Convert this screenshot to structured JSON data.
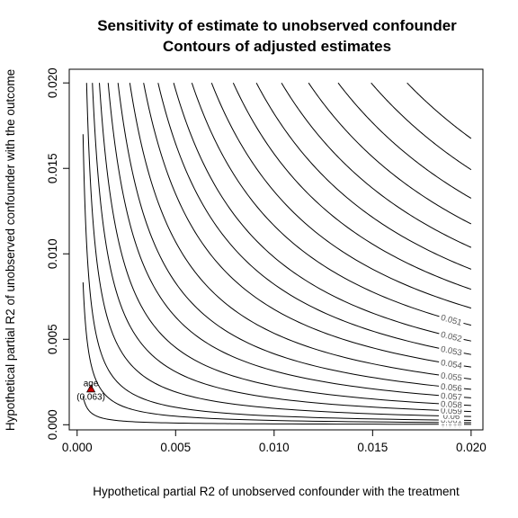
{
  "chart_data": {
    "type": "line",
    "title": "Sensitivity of estimate to unobserved confounder",
    "subtitle": "Contours of adjusted estimates",
    "xlabel": "Hypothetical partial R2 of unobserved confounder with the treatment",
    "ylabel": "Hypothetical partial R2 of unobserved confounder with the outcome",
    "xlim": [
      -0.0004,
      0.0206
    ],
    "ylim": [
      -0.0003,
      0.0208
    ],
    "x_ticks": [
      "0.000",
      "0.005",
      "0.010",
      "0.015",
      "0.020"
    ],
    "x_tick_values": [
      0,
      0.005,
      0.01,
      0.015,
      0.02
    ],
    "y_ticks": [
      "0.000",
      "0.005",
      "0.010",
      "0.015",
      "0.020"
    ],
    "y_tick_values": [
      0,
      0.005,
      0.01,
      0.015,
      0.02
    ],
    "grid": false,
    "legend": "none",
    "contour_levels": [
      {
        "label": "0.063",
        "k": 5e-07
      },
      {
        "label": "0.062",
        "k": 2.5e-06
      },
      {
        "label": "0.061",
        "k": 5.1e-06
      },
      {
        "label": "0.06",
        "k": 9.6e-06
      },
      {
        "label": "0.059",
        "k": 1.55e-05
      },
      {
        "label": "0.058",
        "k": 2.26e-05
      },
      {
        "label": "0.057",
        "k": 3.15e-05
      },
      {
        "label": "0.056",
        "k": 4.15e-05
      },
      {
        "label": "0.055",
        "k": 5.35e-05
      },
      {
        "label": "0.054",
        "k": 6.75e-05
      },
      {
        "label": "0.053",
        "k": 8.22e-05
      },
      {
        "label": "0.052",
        "k": 9.8e-05
      },
      {
        "label": "0.051",
        "k": 0.0001165
      },
      {
        "label": "",
        "k": 0.0001365
      },
      {
        "label": "",
        "k": 0.0001585
      },
      {
        "label": "",
        "k": 0.000182
      },
      {
        "label": "",
        "k": 0.0002075
      },
      {
        "label": "",
        "k": 0.000235
      },
      {
        "label": "",
        "k": 0.000265
      },
      {
        "label": "",
        "k": 0.0002985
      },
      {
        "label": "",
        "k": 0.000335
      }
    ],
    "points": [
      {
        "label": "age",
        "estimate": "(0.063)",
        "x": 0.0007,
        "y": 0.0021,
        "color": "#cc0000"
      }
    ]
  }
}
